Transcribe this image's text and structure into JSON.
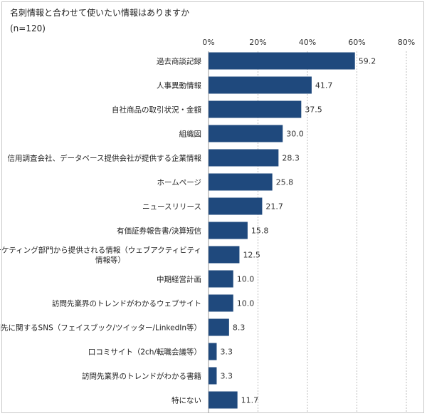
{
  "title": "名刺情報と合わせて使いたい情報はありますか",
  "subtitle": "(n=120)",
  "colors": {
    "bar": "#1f497d",
    "grid": "#bdbdbd"
  },
  "chart_data": {
    "type": "bar",
    "orientation": "horizontal",
    "title": "名刺情報と合わせて使いたい情報はありますか",
    "subtitle": "(n=120)",
    "xlim": [
      0,
      80
    ],
    "ticks": [
      "0%",
      "20%",
      "40%",
      "60%",
      "80%"
    ],
    "tick_values": [
      0,
      20,
      40,
      60,
      80
    ],
    "grid": "vertical dashed",
    "categories": [
      [
        "過去商談記録"
      ],
      [
        "人事異動情報"
      ],
      [
        "自社商品の取引状況・金額"
      ],
      [
        "組織図"
      ],
      [
        "信用調査会社、データベース提供会社が提供する企業情報"
      ],
      [
        "ホームページ"
      ],
      [
        "ニュースリリース"
      ],
      [
        "有価証券報告書/決算短信"
      ],
      [
        "自社マーケティング部門から提供される情報（ウェブアクティビティ",
        "情報等）"
      ],
      [
        "中期経営計画"
      ],
      [
        "訪問先業界のトレンドがわかるウェブサイト"
      ],
      [
        "訪問先に関するSNS（フェイスブック/ツイッター/LinkedIn等）"
      ],
      [
        "口コミサイト（2ch/転職会議等）"
      ],
      [
        "訪問先業界のトレンドがわかる書籍"
      ],
      [
        "特にない"
      ]
    ],
    "values": [
      59.2,
      41.7,
      37.5,
      30.0,
      28.3,
      25.8,
      21.7,
      15.8,
      12.5,
      10.0,
      10.0,
      8.3,
      3.3,
      3.3,
      11.7
    ],
    "value_labels": [
      "59.2",
      "41.7",
      "37.5",
      "30.0",
      "28.3",
      "25.8",
      "21.7",
      "15.8",
      "12.5",
      "10.0",
      "10.0",
      "8.3",
      "3.3",
      "3.3",
      "11.7"
    ]
  }
}
